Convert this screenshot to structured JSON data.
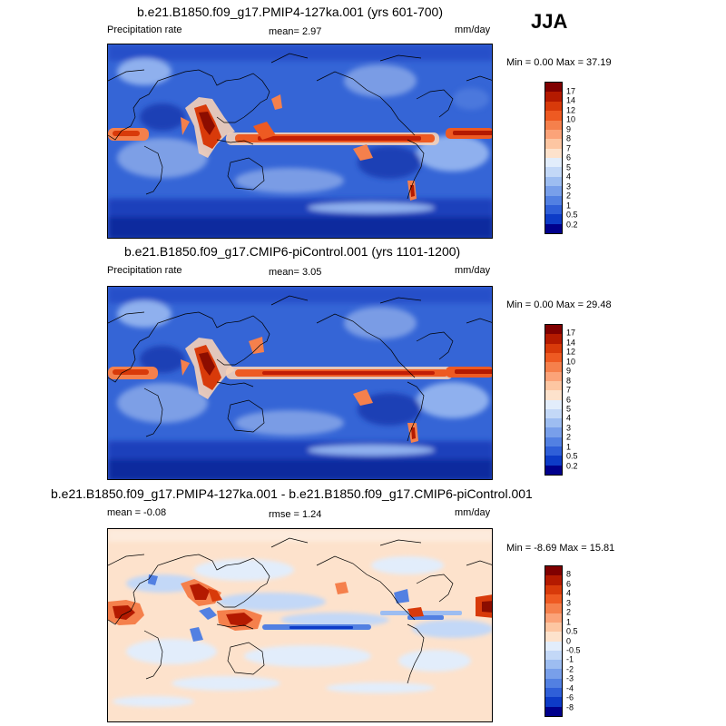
{
  "season": "JJA",
  "panels": [
    {
      "title": "b.e21.B1850.f09_g17.PMIP4-127ka.001 (yrs 601-700)",
      "left_label": "Precipitation rate",
      "center_label": "mean=   2.97",
      "right_label": "mm/day",
      "minmax": "Min =   0.00 Max =  37.19"
    },
    {
      "title": "b.e21.B1850.f09_g17.CMIP6-piControl.001 (yrs 1101-1200)",
      "left_label": "Precipitation rate",
      "center_label": "mean=   3.05",
      "right_label": "mm/day",
      "minmax": "Min =   0.00 Max =  29.48"
    },
    {
      "title": "b.e21.B1850.f09_g17.PMIP4-127ka.001 - b.e21.B1850.f09_g17.CMIP6-piControl.001",
      "left_label": "mean =  -0.08",
      "center_label": "rmse =   1.24",
      "right_label": "mm/day",
      "minmax": "Min =  -8.69 Max =  15.81"
    }
  ],
  "colorbars": [
    {
      "labels": [
        "17",
        "14",
        "12",
        "10",
        "9",
        "8",
        "7",
        "6",
        "5",
        "4",
        "3",
        "2",
        "1",
        "0.5",
        "0.2"
      ],
      "colors": [
        "#800000",
        "#b41a00",
        "#d83a0a",
        "#ee5a22",
        "#f5804c",
        "#fba379",
        "#fdc6a2",
        "#fde2cc",
        "#e2edfb",
        "#c3d8f7",
        "#9dbdf1",
        "#789fea",
        "#5280e2",
        "#2f5fd8",
        "#0d3bc7",
        "#00008c"
      ]
    },
    {
      "labels": [
        "17",
        "14",
        "12",
        "10",
        "9",
        "8",
        "7",
        "6",
        "5",
        "4",
        "3",
        "2",
        "1",
        "0.5",
        "0.2"
      ],
      "colors": [
        "#800000",
        "#b41a00",
        "#d83a0a",
        "#ee5a22",
        "#f5804c",
        "#fba379",
        "#fdc6a2",
        "#fde2cc",
        "#e2edfb",
        "#c3d8f7",
        "#9dbdf1",
        "#789fea",
        "#5280e2",
        "#2f5fd8",
        "#0d3bc7",
        "#00008c"
      ]
    },
    {
      "labels": [
        "8",
        "6",
        "4",
        "3",
        "2",
        "1",
        "0.5",
        "0",
        "-0.5",
        "-1",
        "-2",
        "-3",
        "-4",
        "-6",
        "-8"
      ],
      "colors": [
        "#800000",
        "#b41a00",
        "#d83a0a",
        "#ee5a22",
        "#f5804c",
        "#fba379",
        "#fdc6a2",
        "#fde2cc",
        "#e2edfb",
        "#c3d8f7",
        "#9dbdf1",
        "#789fea",
        "#5280e2",
        "#2f5fd8",
        "#0d3bc7",
        "#00008c"
      ]
    }
  ]
}
